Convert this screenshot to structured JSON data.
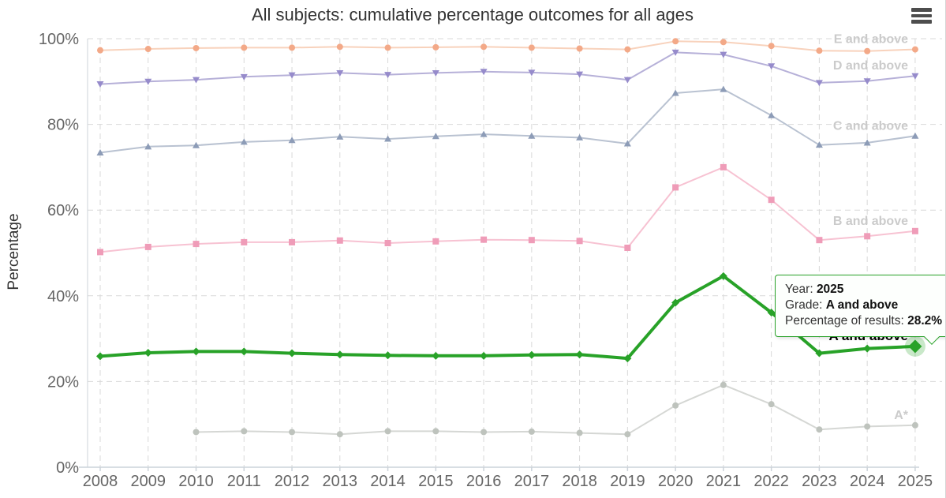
{
  "chart_data": {
    "type": "line",
    "title": "All subjects: cumulative percentage outcomes for all ages",
    "xlabel": "",
    "ylabel": "Percentage",
    "x": [
      2008,
      2009,
      2010,
      2011,
      2012,
      2013,
      2014,
      2015,
      2016,
      2017,
      2018,
      2019,
      2020,
      2021,
      2022,
      2023,
      2024,
      2025
    ],
    "ylim": [
      0,
      100
    ],
    "yticks": [
      "0%",
      "20%",
      "40%",
      "60%",
      "80%",
      "100%"
    ],
    "grid": true,
    "legend_position": "end-of-line-labels",
    "series": [
      {
        "name": "E and above",
        "marker": "circle",
        "line_color": "#f8d2bc",
        "marker_color": "#f3a988",
        "label_color": "#cbcbcb",
        "highlighted": false,
        "values": [
          97.3,
          97.6,
          97.8,
          97.9,
          97.9,
          98.1,
          97.9,
          98.0,
          98.1,
          97.9,
          97.7,
          97.5,
          99.4,
          99.2,
          98.3,
          97.2,
          97.1,
          97.5
        ]
      },
      {
        "name": "D and above",
        "marker": "triangle-down",
        "line_color": "#b6b0d8",
        "marker_color": "#968bcb",
        "label_color": "#cbcbcb",
        "highlighted": false,
        "values": [
          89.4,
          90.0,
          90.4,
          91.1,
          91.5,
          92.0,
          91.6,
          92.0,
          92.3,
          92.1,
          91.7,
          90.4,
          96.8,
          96.3,
          93.6,
          89.7,
          90.1,
          91.3
        ]
      },
      {
        "name": "C and above",
        "marker": "triangle-up",
        "line_color": "#b9c2d1",
        "marker_color": "#8d9cb7",
        "label_color": "#cbcbcb",
        "highlighted": false,
        "values": [
          73.4,
          74.8,
          75.1,
          75.9,
          76.3,
          77.1,
          76.6,
          77.2,
          77.7,
          77.3,
          76.9,
          75.5,
          87.3,
          88.2,
          82.1,
          75.2,
          75.7,
          77.3
        ]
      },
      {
        "name": "B and above",
        "marker": "square",
        "line_color": "#f7c2d2",
        "marker_color": "#ef9cb8",
        "label_color": "#cbcbcb",
        "highlighted": false,
        "values": [
          50.2,
          51.4,
          52.1,
          52.5,
          52.5,
          52.9,
          52.3,
          52.7,
          53.1,
          53.0,
          52.8,
          51.2,
          65.3,
          70.0,
          62.4,
          53.0,
          53.9,
          55.1
        ]
      },
      {
        "name": "A*",
        "marker": "circle",
        "line_color": "#d5d7d4",
        "marker_color": "#bec3bd",
        "label_color": "#cbcbcb",
        "highlighted": false,
        "values": [
          null,
          null,
          8.2,
          8.4,
          8.2,
          7.7,
          8.4,
          8.4,
          8.2,
          8.3,
          8.0,
          7.7,
          14.4,
          19.2,
          14.7,
          8.8,
          9.5,
          9.8
        ]
      },
      {
        "name": "A and above",
        "marker": "diamond",
        "line_color": "#28a228",
        "marker_color": "#28a228",
        "label_color": "#000000",
        "highlighted": true,
        "values": [
          25.9,
          26.7,
          27.0,
          27.0,
          26.6,
          26.3,
          26.1,
          26.0,
          26.0,
          26.2,
          26.3,
          25.4,
          38.4,
          44.6,
          36.1,
          26.6,
          27.7,
          28.2
        ]
      }
    ],
    "colors": {
      "highlight_green": "#28a228",
      "halo": "rgba(40,162,40,0.25)",
      "grid": "#d9d9d9",
      "axis_line": "#ccd3da",
      "tick_text": "#666666",
      "faded_label": "#cbcbcb"
    }
  },
  "tooltip": {
    "rows": [
      {
        "label": "Year: ",
        "value": "2025"
      },
      {
        "label": "Grade: ",
        "value": "A and above"
      },
      {
        "label": "Percentage of results: ",
        "value": "28.2%"
      }
    ]
  },
  "menu": {
    "icon": "hamburger-icon"
  }
}
